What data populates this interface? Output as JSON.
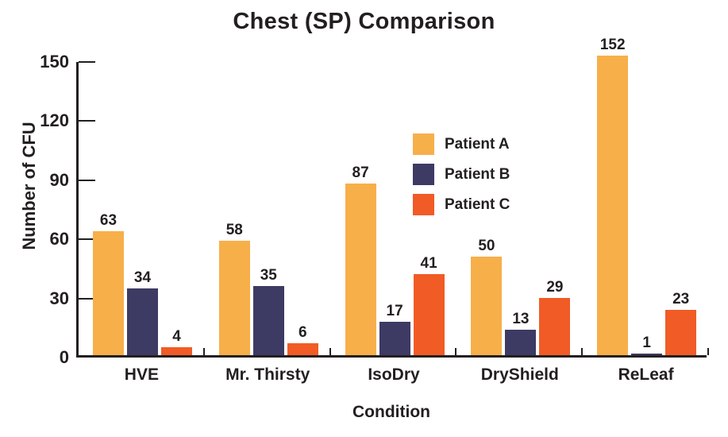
{
  "chart_data": {
    "type": "bar",
    "title": "Chest (SP) Comparison",
    "xlabel": "Condition",
    "ylabel": "Number of CFU",
    "categories": [
      "HVE",
      "Mr. Thirsty",
      "IsoDry",
      "DryShield",
      "ReLeaf"
    ],
    "series": [
      {
        "name": "Patient A",
        "color": "#F7AF4A",
        "values": [
          63,
          58,
          87,
          50,
          152
        ]
      },
      {
        "name": "Patient B",
        "color": "#3D3A64",
        "values": [
          34,
          35,
          17,
          13,
          1
        ]
      },
      {
        "name": "Patient C",
        "color": "#F15B26",
        "values": [
          4,
          6,
          41,
          29,
          23
        ]
      }
    ],
    "yticks": [
      0,
      30,
      60,
      90,
      120,
      150
    ],
    "ylim": [
      0,
      150
    ],
    "grid": false,
    "legend_position": "inside-upper-middle",
    "value_labels_shown": true
  },
  "style_colors": {
    "text": "#231F20",
    "axis": "#231F20",
    "background": "#FFFFFF"
  }
}
